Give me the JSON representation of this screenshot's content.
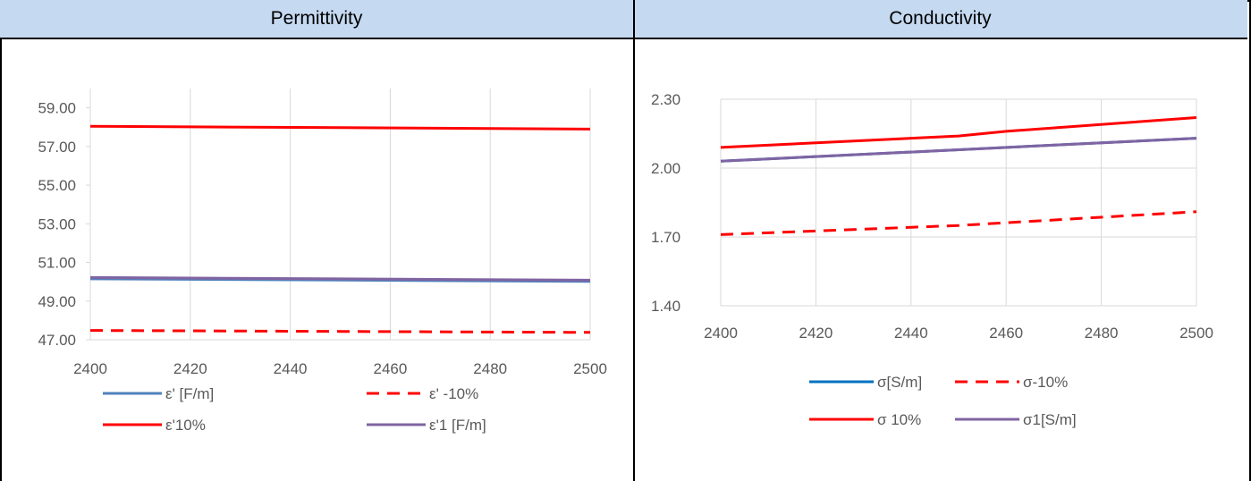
{
  "panels": {
    "left_title": "Permittivity",
    "right_title": "Conductivity"
  },
  "chart_data": [
    {
      "type": "line",
      "title": "",
      "xlim": [
        2400,
        2500
      ],
      "ylim": [
        47,
        60
      ],
      "x_ticks": [
        "2400",
        "2420",
        "2440",
        "2460",
        "2480",
        "2500"
      ],
      "y_ticks": [
        "47.00",
        "49.00",
        "51.00",
        "53.00",
        "55.00",
        "57.00",
        "59.00"
      ],
      "grid": "vertical",
      "legend_placement": "bottom",
      "series": [
        {
          "name": "ε' [F/m]",
          "color": "#4f81bd",
          "dash": "solid",
          "x": [
            2400,
            2500
          ],
          "y": [
            50.15,
            50.02
          ]
        },
        {
          "name": "ε' -10%",
          "color": "#ff0000",
          "dash": "dashed",
          "x": [
            2400,
            2500
          ],
          "y": [
            47.48,
            47.38
          ]
        },
        {
          "name": "ε'10%",
          "color": "#ff0000",
          "dash": "solid",
          "x": [
            2400,
            2500
          ],
          "y": [
            58.05,
            57.9
          ]
        },
        {
          "name": "ε'1 [F/m]",
          "color": "#8064a2",
          "dash": "solid",
          "x": [
            2400,
            2500
          ],
          "y": [
            50.22,
            50.08
          ]
        }
      ]
    },
    {
      "type": "line",
      "title": "",
      "xlim": [
        2400,
        2500
      ],
      "ylim": [
        1.4,
        2.3
      ],
      "x_ticks": [
        "2400",
        "2420",
        "2440",
        "2460",
        "2480",
        "2500"
      ],
      "y_ticks": [
        "1.40",
        "1.70",
        "2.00",
        "2.30"
      ],
      "grid": "both",
      "legend_placement": "bottom",
      "series": [
        {
          "name": "σ[S/m]",
          "color": "#0070c0",
          "dash": "solid",
          "x": [
            2400,
            2450,
            2500
          ],
          "y": [
            2.03,
            2.08,
            2.13
          ]
        },
        {
          "name": "σ-10%",
          "color": "#ff0000",
          "dash": "dashed",
          "x": [
            2400,
            2450,
            2500
          ],
          "y": [
            1.71,
            1.75,
            1.81
          ]
        },
        {
          "name": "σ 10%",
          "color": "#ff0000",
          "dash": "solid",
          "x": [
            2400,
            2450,
            2460,
            2500
          ],
          "y": [
            2.09,
            2.14,
            2.16,
            2.22
          ]
        },
        {
          "name": "σ1[S/m]",
          "color": "#8064a2",
          "dash": "solid",
          "x": [
            2400,
            2450,
            2500
          ],
          "y": [
            2.03,
            2.08,
            2.13
          ]
        }
      ]
    }
  ]
}
